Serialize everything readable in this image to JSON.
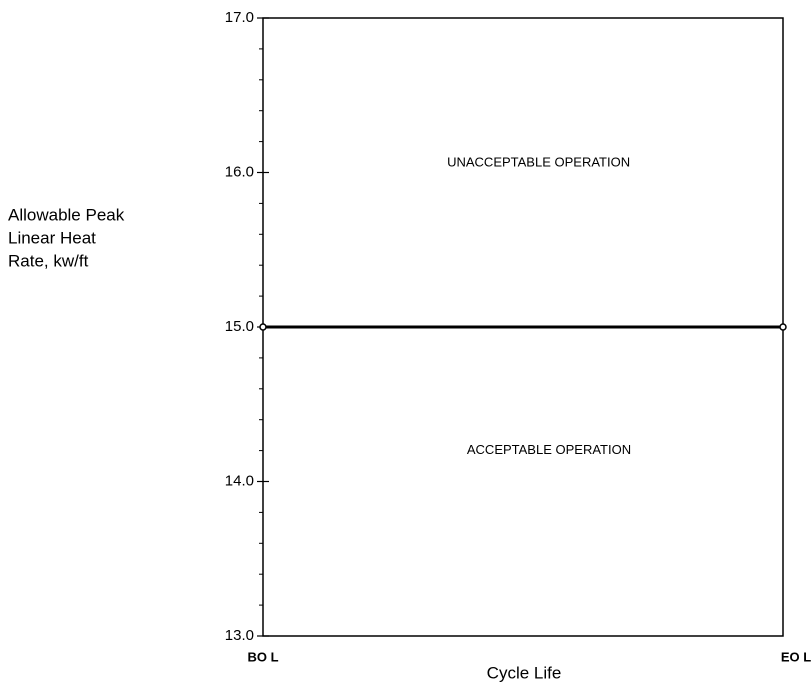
{
  "chart_data": {
    "type": "line",
    "ylabel": [
      "Allowable Peak",
      "Linear Heat",
      "Rate, kw/ft"
    ],
    "xlabel": "Cycle Life",
    "categories": [
      "BO L",
      "EO L"
    ],
    "series": [
      {
        "color": "#000000",
        "values": [
          15,
          15
        ]
      }
    ],
    "ylim": [
      13,
      17
    ],
    "yticks": [
      {
        "value": 13,
        "label": "13.0"
      },
      {
        "value": 14,
        "label": "14.0"
      },
      {
        "value": 15,
        "label": "15.0"
      },
      {
        "value": 16,
        "label": "16.0"
      },
      {
        "value": 17,
        "label": "17.0"
      }
    ],
    "yminor_ticks": [
      13.2,
      13.4,
      13.6,
      13.8,
      14.2,
      14.4,
      14.6,
      14.8,
      15.2,
      15.4,
      15.6,
      15.8,
      16.2,
      16.4,
      16.6,
      16.8
    ],
    "annotations": [
      {
        "text": "UNACCEPTABLE OPERATION",
        "x": 0.53,
        "y": 16.06
      },
      {
        "text": "ACCEPTABLE OPERATION",
        "x": 0.55,
        "y": 14.2
      }
    ],
    "grid": false
  }
}
